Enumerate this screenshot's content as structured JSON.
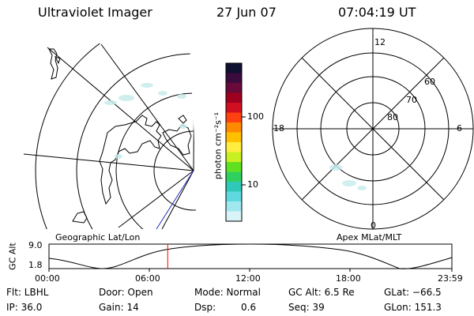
{
  "header": {
    "title": "Ultraviolet Imager",
    "date": "27 Jun 07",
    "time": "07:04:19 UT"
  },
  "colorbar": {
    "unit_label": "photon cm⁻²s⁻¹",
    "ticks": [
      "100",
      "10"
    ],
    "colors": [
      "#101030",
      "#3b0b3d",
      "#6a0a3a",
      "#a00020",
      "#d01020",
      "#ff4010",
      "#ff8a00",
      "#ffc000",
      "#ffee40",
      "#c8f020",
      "#60e020",
      "#30d060",
      "#30c8b8",
      "#60d8e0",
      "#a0e8f0",
      "#d8f4f8"
    ]
  },
  "left_panel": {
    "caption": "Geographic Lat/Lon"
  },
  "right_panel": {
    "caption": "Apex MLat/MLT",
    "hour_labels": {
      "top": "12",
      "left": "18",
      "right": "6",
      "bottom": "0"
    },
    "lat_labels": [
      "60",
      "70",
      "80"
    ]
  },
  "altitude_plot": {
    "ylabel": "GC Alt",
    "ymax": "9.0",
    "ymin": "1.8",
    "xticks": [
      "00:00",
      "06:00",
      "12:00",
      "18:00",
      "23:59"
    ],
    "current_time_fraction": 0.2947,
    "marker_color": "#ff0000"
  },
  "info": {
    "row1": [
      "Flt: LBHL",
      "Door: Open",
      "Mode: Normal",
      "GC Alt: 6.5 Re",
      "GLat: −66.5"
    ],
    "row2": [
      "IP: 36.0",
      "Gain: 14",
      "Dsp:",
      "0.6",
      "Seq: 39",
      "GLon: 151.3"
    ]
  }
}
